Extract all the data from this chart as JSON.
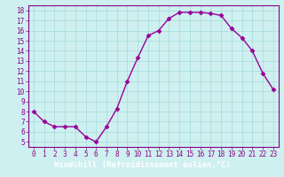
{
  "x": [
    0,
    1,
    2,
    3,
    4,
    5,
    6,
    7,
    8,
    9,
    10,
    11,
    12,
    13,
    14,
    15,
    16,
    17,
    18,
    19,
    20,
    21,
    22,
    23
  ],
  "y": [
    8,
    7,
    6.5,
    6.5,
    6.5,
    5.5,
    5,
    6.5,
    8.3,
    11,
    13.3,
    15.5,
    16,
    17.2,
    17.8,
    17.8,
    17.8,
    17.7,
    17.5,
    16.2,
    15.3,
    14,
    11.8,
    10.2
  ],
  "line_color": "#990099",
  "marker": "D",
  "markersize": 2.5,
  "linewidth": 1.0,
  "background_color": "#cff0f0",
  "grid_color": "#aadddd",
  "xlabel": "Windchill (Refroidissement éolien,°C)",
  "xlabel_fontsize": 6.5,
  "xlabel_color": "#440044",
  "xlabel_bg": "#9966aa",
  "tick_color": "#880088",
  "tick_fontsize": 5.5,
  "ylim": [
    4.5,
    18.5
  ],
  "xlim": [
    -0.5,
    23.5
  ],
  "yticks": [
    5,
    6,
    7,
    8,
    9,
    10,
    11,
    12,
    13,
    14,
    15,
    16,
    17,
    18
  ],
  "xticks": [
    0,
    1,
    2,
    3,
    4,
    5,
    6,
    7,
    8,
    9,
    10,
    11,
    12,
    13,
    14,
    15,
    16,
    17,
    18,
    19,
    20,
    21,
    22,
    23
  ],
  "spine_color": "#880088",
  "bottom_bar_color": "#7755aa"
}
